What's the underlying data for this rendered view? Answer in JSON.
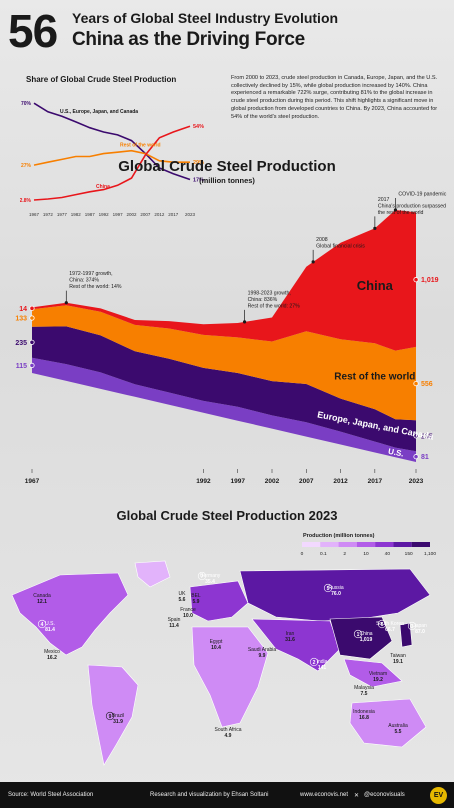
{
  "header": {
    "number": "56",
    "line1": "Years of Global Steel Industry Evolution",
    "line2": "China as the Driving Force"
  },
  "intro_text": "From 2000 to 2023, crude steel production in Canada, Europe, Japan, and the U.S. collectively declined by 15%, while global production increased by 140%. China experienced a remarkable 722% surge, contributing 81% to the global increase in crude steel production during this period. This shift highlights a significant move in global production from developed countries to China. By 2023, China accounted for 54% of the world's steel production.",
  "colors": {
    "china": "#e8161b",
    "rest": "#f77f00",
    "europe": "#3b0a6e",
    "us": "#7a3ec4",
    "annotation": "#1a1a1a"
  },
  "chart_data": [
    {
      "type": "line",
      "title": "Share of Global Crude Steel Production",
      "x": [
        1967,
        1972,
        1977,
        1982,
        1987,
        1992,
        1997,
        2002,
        2007,
        2012,
        2017,
        2023
      ],
      "x_tick_labels": [
        "1967",
        "1972",
        "1977",
        "1982",
        "1987",
        "1992",
        "1997",
        "2002",
        "2007",
        "2012",
        "2017",
        "2023"
      ],
      "ylim": [
        0,
        75
      ],
      "series": [
        {
          "name": "U.S., Europe, Japan, and Canada",
          "color": "#3b0a6e",
          "values": [
            70,
            64,
            61,
            57,
            53,
            50,
            48,
            44,
            35,
            25,
            21,
            17
          ],
          "start_label": "70%",
          "end_label": "17%"
        },
        {
          "name": "Rest of the world",
          "color": "#f77f00",
          "values": [
            27,
            29,
            31,
            33,
            33,
            35,
            36,
            37,
            35,
            30,
            29,
            29
          ],
          "start_label": "27%",
          "end_label": "29%"
        },
        {
          "name": "China",
          "color": "#e8161b",
          "values": [
            2.8,
            3.5,
            4.5,
            6.5,
            8.5,
            10,
            13,
            18,
            34,
            46,
            50,
            54
          ],
          "start_label": "2.8%",
          "end_label": "54%"
        }
      ]
    },
    {
      "type": "area",
      "title": "Global Crude Steel Production",
      "subtitle": "(million tonnes)",
      "x": [
        1967,
        1972,
        1977,
        1982,
        1987,
        1992,
        1997,
        2002,
        2007,
        2012,
        2017,
        2020,
        2023
      ],
      "x_tick_labels": [
        "1967",
        "1992",
        "1997",
        "2002",
        "2007",
        "2012",
        "2017",
        "2023"
      ],
      "series": [
        {
          "name": "U.S.",
          "color": "#7a3ec4",
          "values": [
            115,
            128,
            125,
            95,
            93,
            90,
            106,
            100,
            108,
            98,
            82,
            73,
            81
          ],
          "start_label": "115",
          "end_label": "81"
        },
        {
          "name": "Europe, Japan, and Canada",
          "color": "#3b0a6e",
          "values": [
            235,
            285,
            280,
            250,
            255,
            250,
            255,
            260,
            290,
            250,
            245,
            215,
            235
          ],
          "start_label": "235",
          "end_label": "235"
        },
        {
          "name": "Rest of the world",
          "color": "#f77f00",
          "values": [
            133,
            160,
            180,
            200,
            230,
            250,
            270,
            300,
            400,
            450,
            500,
            520,
            556
          ],
          "start_label": "133",
          "end_label": "556"
        },
        {
          "name": "China",
          "color": "#e8161b",
          "values": [
            14,
            20,
            25,
            37,
            56,
            81,
            109,
            182,
            489,
            731,
            871,
            1065,
            1019
          ],
          "start_label": "14",
          "end_label": "1,019"
        }
      ],
      "annotations": [
        {
          "year": 1972,
          "lines": [
            "1972-1997 growth,",
            "China: 374%",
            "Rest of the world: 14%"
          ]
        },
        {
          "year": 1998,
          "lines": [
            "1998-2023 growth,",
            "China: 836%",
            "Rest of the world: 27%"
          ]
        },
        {
          "year": 2008,
          "lines": [
            "2008",
            "Global financial crisis"
          ]
        },
        {
          "year": 2017,
          "lines": [
            "2017",
            "China's production surpassed",
            "the rest of the world"
          ]
        },
        {
          "year": 2020,
          "lines": [
            "2020",
            "COVID-19 pandemic"
          ]
        }
      ]
    }
  ],
  "map": {
    "title": "Global Crude Steel Production 2023",
    "legend_title": "Production (million tonnes)",
    "legend_ticks": [
      "0",
      "0.1",
      "2",
      "10",
      "40",
      "150",
      "1,100"
    ],
    "legend_colors": [
      "#f2d9ff",
      "#e2b3fb",
      "#cf8bf5",
      "#b25ce8",
      "#8d36d1",
      "#5c18a3",
      "#3b0a6e"
    ],
    "countries": [
      {
        "rank": "",
        "name": "Canada",
        "value": "12.1"
      },
      {
        "rank": "4",
        "name": "U.S.",
        "value": "81.4"
      },
      {
        "rank": "",
        "name": "Mexico",
        "value": "16.2"
      },
      {
        "rank": "9",
        "name": "Brazil",
        "value": "31.9"
      },
      {
        "rank": "7",
        "name": "Germany",
        "value": "35.4"
      },
      {
        "rank": "",
        "name": "UK",
        "value": "5.6"
      },
      {
        "rank": "",
        "name": "BEL",
        "value": "5.9"
      },
      {
        "rank": "",
        "name": "France",
        "value": "10.0"
      },
      {
        "rank": "",
        "name": "Spain",
        "value": "11.4"
      },
      {
        "rank": "",
        "name": "Egypt",
        "value": "10.4"
      },
      {
        "rank": "",
        "name": "South Africa",
        "value": "4.9"
      },
      {
        "rank": "",
        "name": "Saudi Arabia",
        "value": "9.9"
      },
      {
        "rank": "",
        "name": "Iran",
        "value": "31.6"
      },
      {
        "rank": "5",
        "name": "Russia",
        "value": "76.0"
      },
      {
        "rank": "2",
        "name": "India",
        "value": "141"
      },
      {
        "rank": "1",
        "name": "China",
        "value": "1,019"
      },
      {
        "rank": "6",
        "name": "South Korea",
        "value": "66.7"
      },
      {
        "rank": "3",
        "name": "Japan",
        "value": "87.0"
      },
      {
        "rank": "",
        "name": "Taiwan",
        "value": "19.1"
      },
      {
        "rank": "",
        "name": "Vietnam",
        "value": "19.2"
      },
      {
        "rank": "",
        "name": "Malaysia",
        "value": "7.5"
      },
      {
        "rank": "",
        "name": "Indonesia",
        "value": "16.8"
      },
      {
        "rank": "",
        "name": "Australia",
        "value": "5.5"
      }
    ]
  },
  "footer": {
    "source": "Source: World Steel Association",
    "credit": "Research and visualization by Ehsan Soltani",
    "website": "www.econovis.net",
    "handle": "@econovisuals",
    "logo": "EV"
  }
}
